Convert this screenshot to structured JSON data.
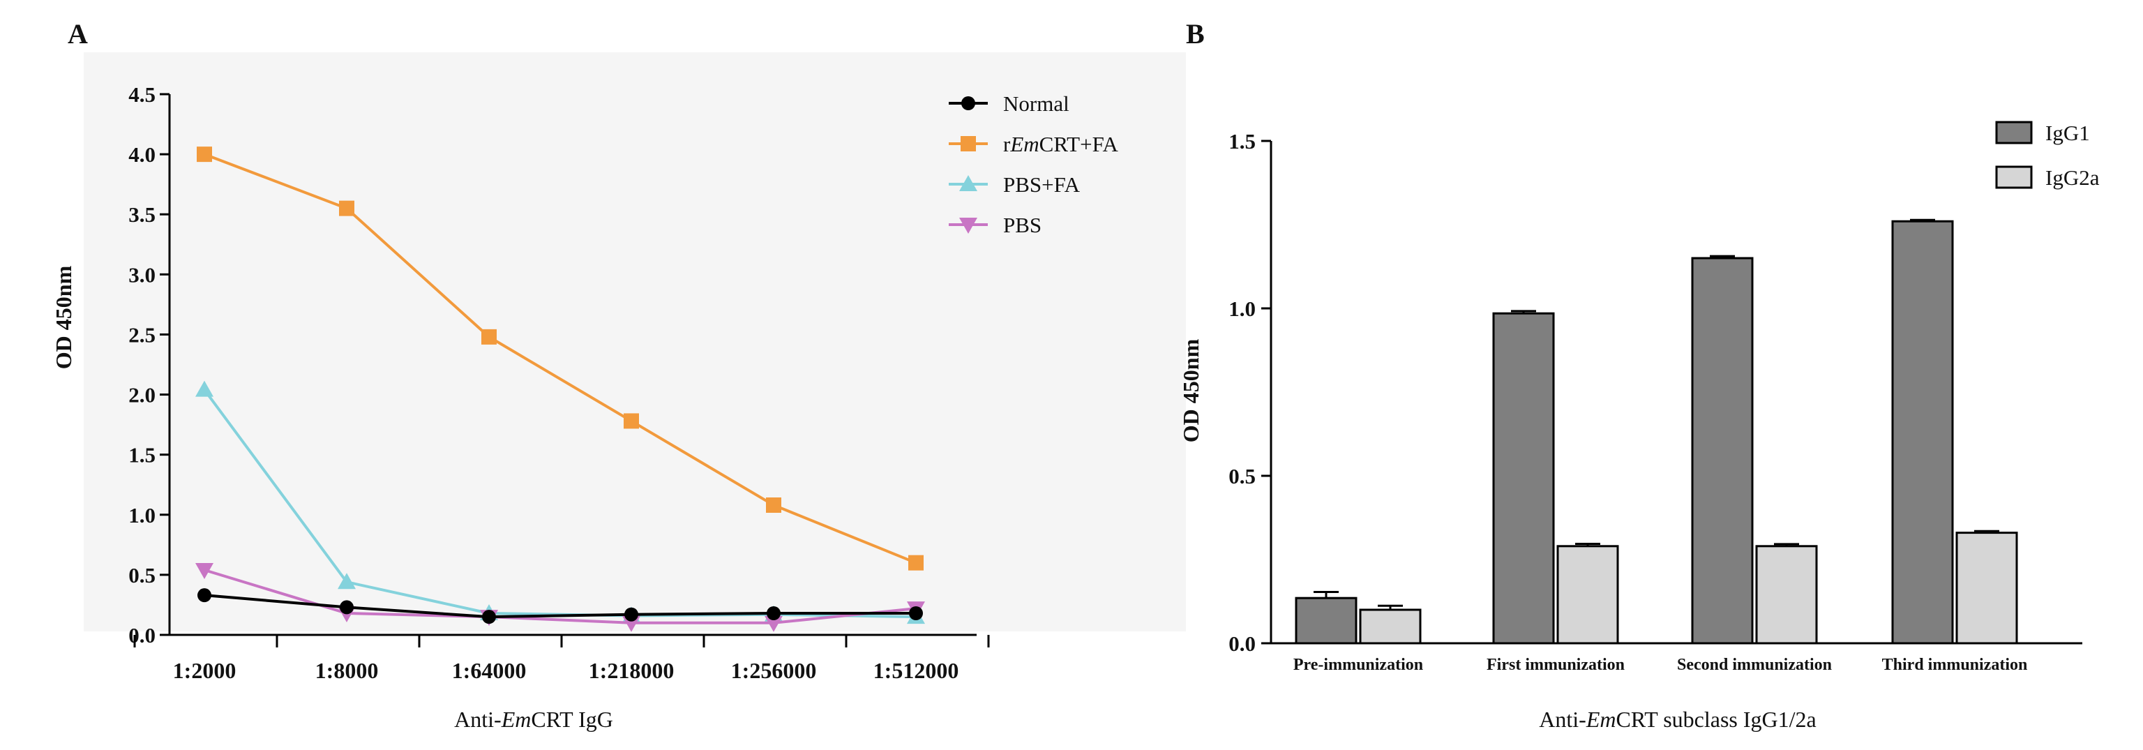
{
  "chart_data": [
    {
      "panel_label": "A",
      "type": "line",
      "title": "",
      "xlabel_parts": [
        "Anti-",
        "Em",
        "CRT IgG"
      ],
      "ylabel": "OD 450nm",
      "categories": [
        "1:2000",
        "1:8000",
        "1:64000",
        "1:218000",
        "1:256000",
        "1:512000"
      ],
      "ylim": [
        0,
        4.5
      ],
      "yticks": [
        "0.0",
        "0.5",
        "1.0",
        "1.5",
        "2.0",
        "2.5",
        "3.0",
        "3.5",
        "4.0",
        "4.5"
      ],
      "legend_position": "top-right",
      "series": [
        {
          "name_parts": [
            "Normal"
          ],
          "name": "Normal",
          "marker": "circle",
          "color": "#000000",
          "values": [
            0.33,
            0.23,
            0.15,
            0.17,
            0.18,
            0.18
          ]
        },
        {
          "name_parts": [
            "r",
            "Em",
            "CRT+FA"
          ],
          "name": "rEmCRT+FA",
          "marker": "square",
          "color": "#f29a3c",
          "values": [
            4.0,
            3.55,
            2.48,
            1.78,
            1.08,
            0.6
          ]
        },
        {
          "name_parts": [
            "PBS+FA"
          ],
          "name": "PBS+FA",
          "marker": "triangle-up",
          "color": "#84d2dc",
          "values": [
            2.04,
            0.44,
            0.18,
            0.16,
            0.17,
            0.15
          ]
        },
        {
          "name_parts": [
            "PBS"
          ],
          "name": "PBS",
          "marker": "triangle-down",
          "color": "#c875c4",
          "values": [
            0.54,
            0.18,
            0.15,
            0.1,
            0.1,
            0.22
          ]
        }
      ]
    },
    {
      "panel_label": "B",
      "type": "bar",
      "title": "",
      "xlabel_parts": [
        "Anti-",
        "Em",
        "CRT subclass IgG1/2a"
      ],
      "ylabel": "OD 450nm",
      "categories": [
        "Pre-immunization",
        "First immunization",
        "Second immunization",
        "Third immunization"
      ],
      "ylim": [
        0,
        1.5
      ],
      "yticks": [
        "0.0",
        "0.5",
        "1.0",
        "1.5"
      ],
      "legend_position": "top-right",
      "series": [
        {
          "name": "IgG1",
          "color": "#7f7f7f",
          "values": [
            0.135,
            0.985,
            1.15,
            1.26
          ],
          "errors": [
            0.018,
            0.007,
            0.006,
            0.004
          ]
        },
        {
          "name": "IgG2a",
          "color": "#d6d6d6",
          "values": [
            0.1,
            0.29,
            0.29,
            0.33
          ],
          "errors": [
            0.012,
            0.007,
            0.006,
            0.005
          ]
        }
      ]
    }
  ]
}
